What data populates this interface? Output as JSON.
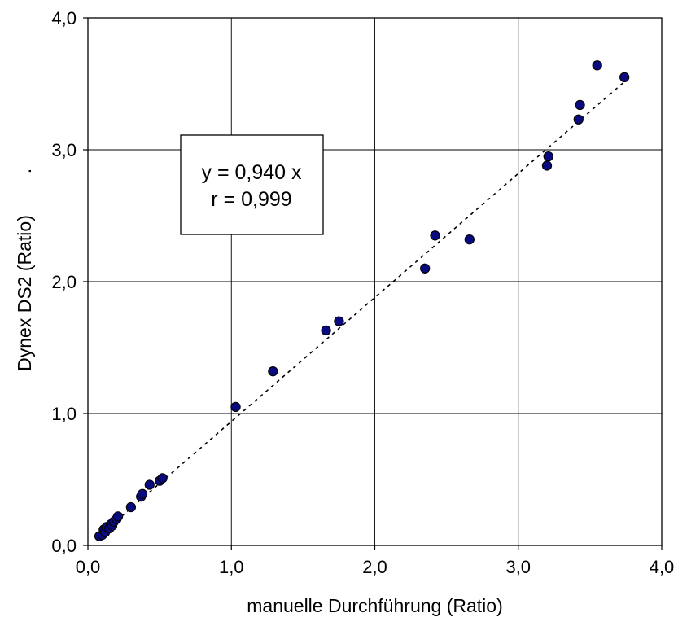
{
  "chart_data": {
    "type": "scatter",
    "title": "",
    "xlabel": "manuelle Durchführung (Ratio)",
    "ylabel": "Dynex DS2 (Ratio)",
    "ylabel_suffix": ".",
    "xlim": [
      0,
      4
    ],
    "ylim": [
      0,
      4
    ],
    "xticks": [
      "0,0",
      "1,0",
      "2,0",
      "3,0",
      "4,0"
    ],
    "yticks": [
      "0,0",
      "1,0",
      "2,0",
      "3,0",
      "4,0"
    ],
    "grid": true,
    "legend": "none",
    "annotation": {
      "line1": "y = 0,940 x",
      "line2": "r = 0,999"
    },
    "trendline": {
      "slope": 0.94,
      "x_start": 0.08,
      "x_end": 3.78,
      "style": "dotted"
    },
    "marker_color": "#0a0a80",
    "points": [
      {
        "x": 0.08,
        "y": 0.07
      },
      {
        "x": 0.1,
        "y": 0.08
      },
      {
        "x": 0.11,
        "y": 0.12
      },
      {
        "x": 0.12,
        "y": 0.1
      },
      {
        "x": 0.13,
        "y": 0.14
      },
      {
        "x": 0.15,
        "y": 0.13
      },
      {
        "x": 0.16,
        "y": 0.16
      },
      {
        "x": 0.17,
        "y": 0.15
      },
      {
        "x": 0.18,
        "y": 0.18
      },
      {
        "x": 0.2,
        "y": 0.2
      },
      {
        "x": 0.21,
        "y": 0.22
      },
      {
        "x": 0.3,
        "y": 0.29
      },
      {
        "x": 0.37,
        "y": 0.37
      },
      {
        "x": 0.38,
        "y": 0.39
      },
      {
        "x": 0.43,
        "y": 0.46
      },
      {
        "x": 0.5,
        "y": 0.49
      },
      {
        "x": 0.52,
        "y": 0.51
      },
      {
        "x": 1.03,
        "y": 1.05
      },
      {
        "x": 1.29,
        "y": 1.32
      },
      {
        "x": 1.66,
        "y": 1.63
      },
      {
        "x": 1.75,
        "y": 1.7
      },
      {
        "x": 2.35,
        "y": 2.1
      },
      {
        "x": 2.42,
        "y": 2.35
      },
      {
        "x": 2.66,
        "y": 2.32
      },
      {
        "x": 3.2,
        "y": 2.88
      },
      {
        "x": 3.21,
        "y": 2.95
      },
      {
        "x": 3.42,
        "y": 3.23
      },
      {
        "x": 3.43,
        "y": 3.34
      },
      {
        "x": 3.55,
        "y": 3.64
      },
      {
        "x": 3.74,
        "y": 3.55
      }
    ]
  }
}
